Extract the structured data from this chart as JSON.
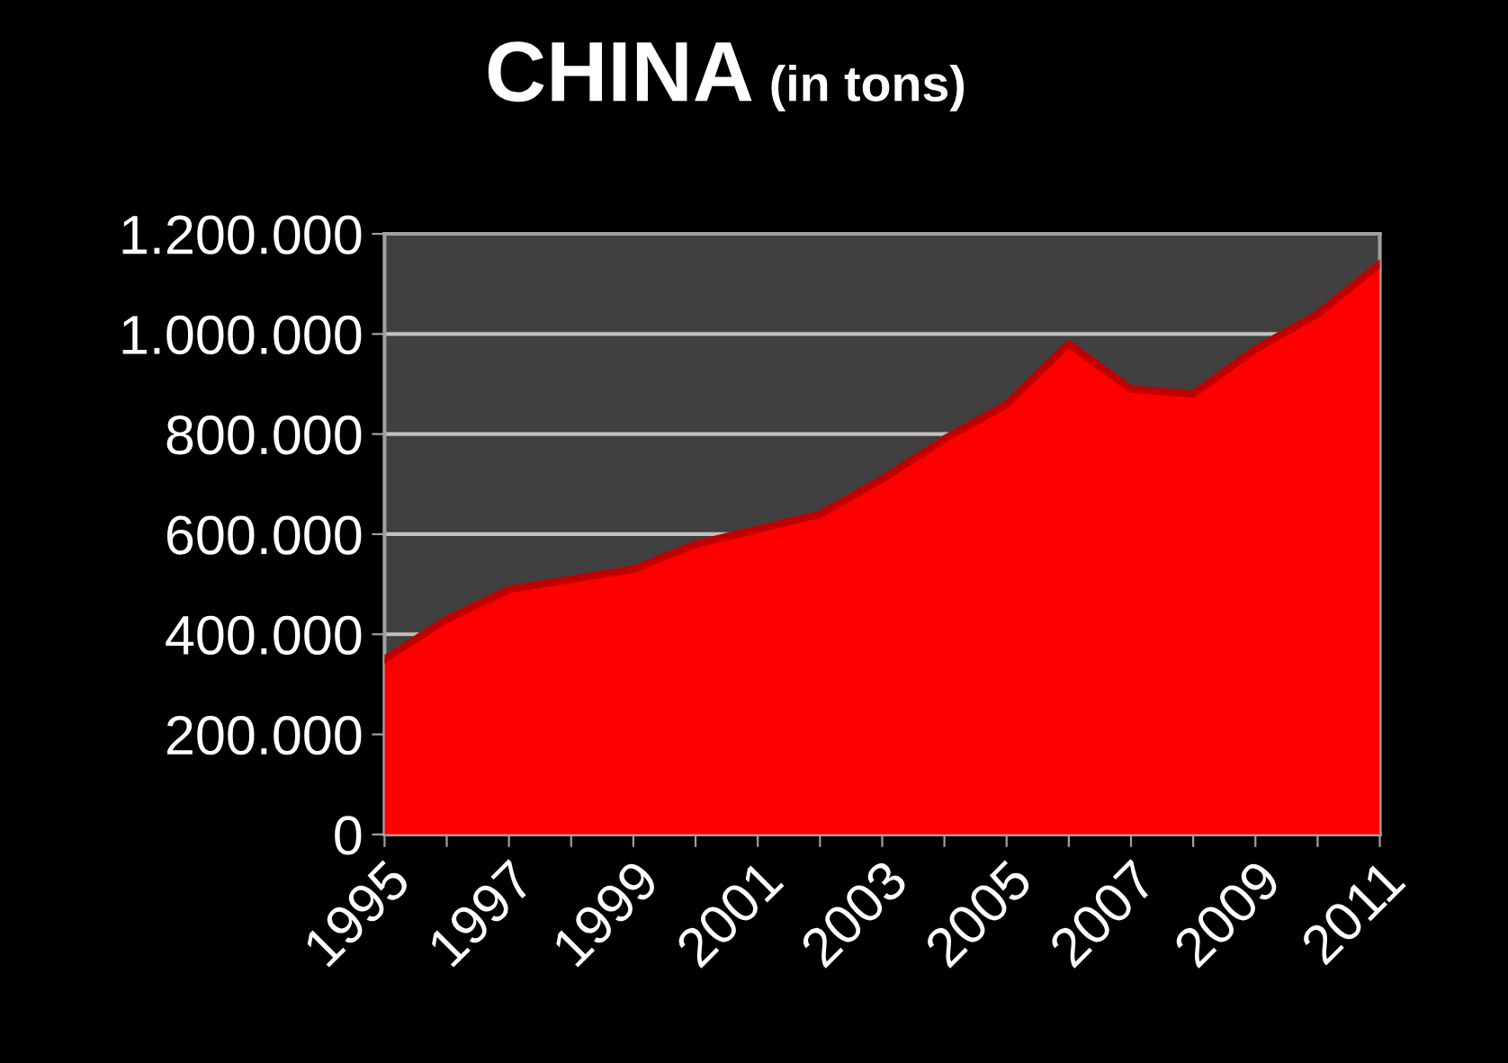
{
  "chart_data": {
    "type": "area",
    "title": "CHINA",
    "subtitle": "(in tons)",
    "categories": [
      "1995",
      null,
      "1997",
      null,
      "1999",
      null,
      "2001",
      null,
      "2003",
      null,
      "2005",
      null,
      "2007",
      null,
      "2009",
      null,
      "2011"
    ],
    "series": [
      {
        "color": "#ff0000",
        "values": [
          350000,
          430000,
          490000,
          510000,
          530000,
          580000,
          610000,
          640000,
          710000,
          790000,
          860000,
          980000,
          890000,
          880000,
          970000,
          1040000,
          1140000
        ]
      }
    ],
    "ylim": [
      0,
      1200000
    ],
    "yticks": [
      0,
      {
        "value": 200000,
        "label": "200.000"
      },
      {
        "value": 400000,
        "label": "400.000"
      },
      {
        "value": 600000,
        "label": "600.000"
      },
      {
        "value": 800000,
        "label": "800.000"
      },
      {
        "value": 1000000,
        "label": "1.000.000"
      },
      {
        "value": 1200000,
        "label": "1.200.000"
      }
    ],
    "grid": "y",
    "legend": false
  }
}
